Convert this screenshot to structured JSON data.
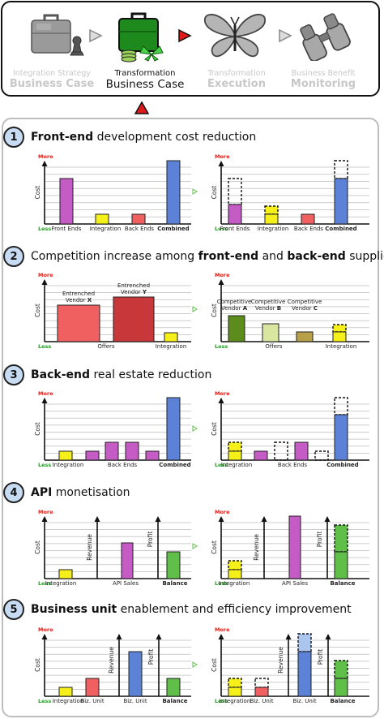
{
  "stages": [
    {
      "line1": "Integration Strategy",
      "line2": "Business Case",
      "active": false,
      "icon": "briefcase-chess-icon"
    },
    {
      "line1": "Transformation",
      "line2": "Business Case",
      "active": true,
      "icon": "green-briefcase-icon"
    },
    {
      "line1": "Transformation",
      "line2": "Execution",
      "active": false,
      "icon": "butterfly-icon"
    },
    {
      "line1": "Business Benefit",
      "line2": "Monitoring",
      "active": false,
      "icon": "binoculars-icon"
    }
  ],
  "axis": {
    "more": "More",
    "less": "Less",
    "cost": "Cost",
    "revenue": "Revenue",
    "profit": "Profit"
  },
  "colors": {
    "purple": "#c55bc5",
    "yellow": "#f5ef1a",
    "red": "#f06060",
    "blue": "#5b82d6",
    "green": "#5fbf48",
    "more": "#e0201a",
    "less": "#2e9a2e",
    "darkred": "#c8383a",
    "olive": "#5c8c1c",
    "lightolive": "#d8e6a0",
    "brownish": "#b8a048"
  },
  "sections": [
    {
      "num": "1",
      "parts": [
        {
          "t": "Front-end",
          "b": true
        },
        {
          "t": " development cost reduction",
          "b": false
        }
      ],
      "left": {
        "labels": [
          "Front Ends",
          "Integration",
          "Back Ends",
          "Combined"
        ]
      },
      "right": {
        "labels": [
          "Front Ends",
          "Integration",
          "Back Ends",
          "Combined"
        ]
      }
    },
    {
      "num": "2",
      "parts": [
        {
          "t": "Competition increase among ",
          "b": false
        },
        {
          "t": "front-end",
          "b": true
        },
        {
          "t": " and ",
          "b": false
        },
        {
          "t": "back-end",
          "b": true
        },
        {
          "t": " suppliers",
          "b": false
        }
      ],
      "left": {
        "labels": [
          "Offers",
          "Integration"
        ],
        "vendors": [
          {
            "top": "Entrenched",
            "bottom": "Vendor",
            "letter": "X"
          },
          {
            "top": "Entrenched",
            "bottom": "Vendor",
            "letter": "Y"
          }
        ]
      },
      "right": {
        "labels": [
          "Offers",
          "Integration"
        ],
        "vendors": [
          {
            "top": "Competitive",
            "bottom": "Vendor",
            "letter": "A"
          },
          {
            "top": "Competitive",
            "bottom": "Vendor",
            "letter": "B"
          },
          {
            "top": "Competitive",
            "bottom": "Vendor",
            "letter": "C"
          }
        ]
      }
    },
    {
      "num": "3",
      "parts": [
        {
          "t": "Back-end",
          "b": true
        },
        {
          "t": " real estate reduction",
          "b": false
        }
      ],
      "left": {
        "labels": [
          "Integration",
          "Back Ends",
          "Combined"
        ]
      },
      "right": {
        "labels": [
          "Integration",
          "Back Ends",
          "Combined"
        ]
      }
    },
    {
      "num": "4",
      "parts": [
        {
          "t": "API",
          "b": true
        },
        {
          "t": " monetisation",
          "b": false
        }
      ],
      "left": {
        "labels": [
          "Integration",
          "API Sales",
          "Balance"
        ]
      },
      "right": {
        "labels": [
          "Integration",
          "API Sales",
          "Balance"
        ]
      }
    },
    {
      "num": "5",
      "parts": [
        {
          "t": "Business unit",
          "b": true
        },
        {
          "t": " enablement and efficiency improvement",
          "b": false
        }
      ],
      "left": {
        "labels": [
          "Integration",
          "Biz. Unit",
          "Biz. Unit",
          "Balance"
        ]
      },
      "right": {
        "labels": [
          "Integration",
          "Biz. Unit",
          "Biz. Unit",
          "Balance"
        ]
      }
    }
  ]
}
